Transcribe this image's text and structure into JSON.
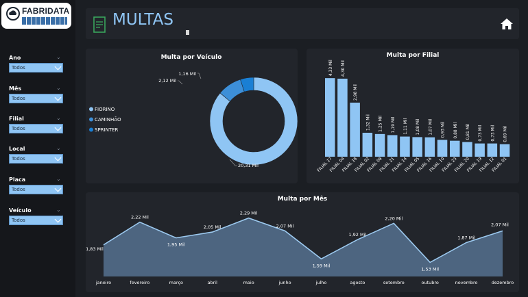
{
  "logo": {
    "text": "FABRIDATA"
  },
  "header": {
    "title": "MULTAS"
  },
  "filters": [
    {
      "label": "Ano",
      "value": "Todos"
    },
    {
      "label": "Mês",
      "value": "Todos"
    },
    {
      "label": "Filial",
      "value": "Todos"
    },
    {
      "label": "Local",
      "value": "Todos"
    },
    {
      "label": "Placa",
      "value": "Todos"
    },
    {
      "label": "Veículo",
      "value": "Todos"
    }
  ],
  "colors": {
    "bar": "#8fc5f4",
    "fiorino": "#8fc5f4",
    "caminhao": "#3d8fd8",
    "sprinter": "#1a7fd4",
    "area": "#4d6580",
    "line": "#9cc9ef"
  },
  "chart_data": [
    {
      "type": "pie",
      "title": "Multa por Veículo",
      "categories": [
        "FIORINO",
        "CAMINHÃO",
        "SPRINTER"
      ],
      "values": [
        20.31,
        2.12,
        1.16
      ],
      "labels": [
        "20,31 Mil",
        "2,12 Mil",
        "1,16 Mil"
      ],
      "legend": "left"
    },
    {
      "type": "bar",
      "title": "Multa por Filial",
      "categories": [
        "FILIAL 17",
        "FILIAL 04",
        "FILIAL 18",
        "FILIAL 02",
        "FILIAL 08",
        "FILIAL 21",
        "FILIAL 14",
        "FILIAL 05",
        "FILIAL 16",
        "FILIAL 10",
        "FILIAL 23",
        "FILIAL 20",
        "FILIAL 19",
        "FILIAL 12",
        "FILIAL 01"
      ],
      "values": [
        4.33,
        4.3,
        2.98,
        1.32,
        1.25,
        1.19,
        1.11,
        1.08,
        1.07,
        0.93,
        0.88,
        0.81,
        0.73,
        0.73,
        0.69
      ],
      "labels": [
        "4,33 Mil",
        "4,30 Mil",
        "2,98 Mil",
        "1,32 Mil",
        "1,25 Mil",
        "1,19 Mil",
        "1,11 Mil",
        "1,08 Mil",
        "1,07 Mil",
        "0,93 Mil",
        "0,88 Mil",
        "0,81 Mil",
        "0,73 Mil",
        "0,73 Mil",
        "0,69 Mil"
      ],
      "ylim": [
        0,
        4.6
      ]
    },
    {
      "type": "area",
      "title": "Multa por Mês",
      "categories": [
        "janeiro",
        "fevereiro",
        "março",
        "abril",
        "maio",
        "junho",
        "julho",
        "agosto",
        "setembro",
        "outubro",
        "novembro",
        "dezembro"
      ],
      "values": [
        1.83,
        2.22,
        1.95,
        2.05,
        2.29,
        2.07,
        1.59,
        1.92,
        2.2,
        1.53,
        1.87,
        2.07
      ],
      "labels": [
        "1,83 Mil",
        "2,22 Mil",
        "1,95 Mil",
        "2,05 Mil",
        "2,29 Mil",
        "2,07 Mil",
        "1,59 Mil",
        "1,92 Mil",
        "2,20 Mil",
        "1,53 Mil",
        "1,87 Mil",
        "2,07 Mil"
      ],
      "ylim": [
        1.3,
        2.45
      ]
    }
  ]
}
